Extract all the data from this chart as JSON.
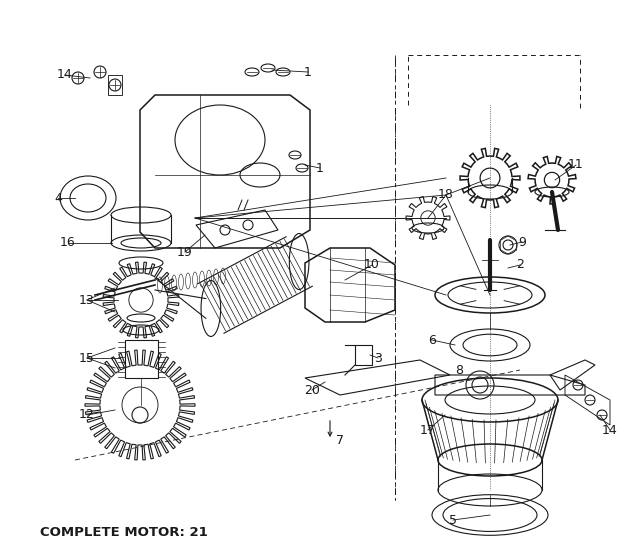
{
  "bg_color": "#ffffff",
  "lc": "#1a1a1a",
  "title": "COMPLETE MOTOR: 21",
  "fig_w": 6.31,
  "fig_h": 5.42,
  "dpi": 100
}
